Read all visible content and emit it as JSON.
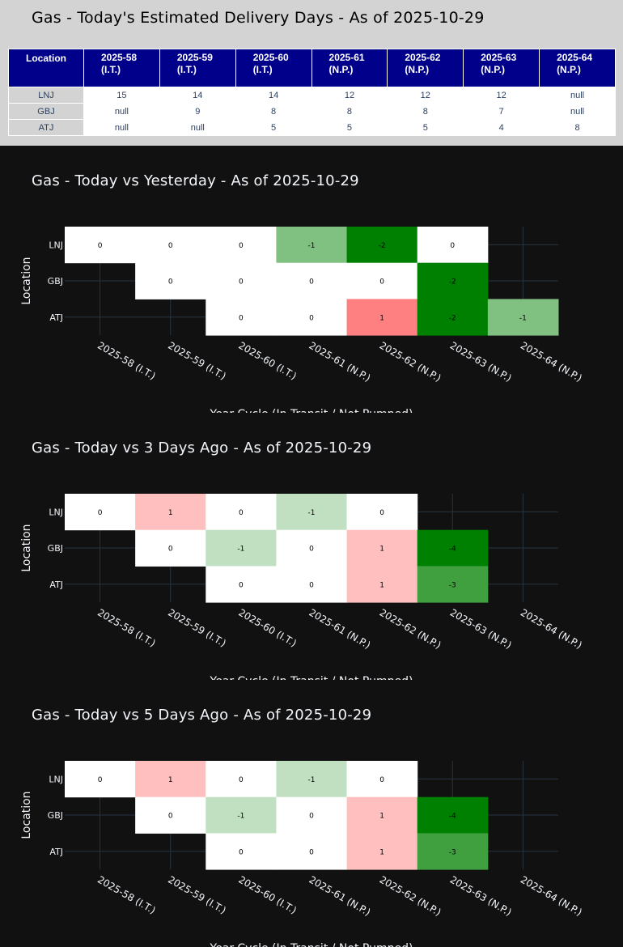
{
  "summary": {
    "title": "Gas - Today's Estimated Delivery Days - As of 2025-10-29",
    "header_location": "Location",
    "columns": [
      {
        "line1": "2025-58",
        "line2": "(I.T.)"
      },
      {
        "line1": "2025-59",
        "line2": "(I.T.)"
      },
      {
        "line1": "2025-60",
        "line2": "(I.T.)"
      },
      {
        "line1": "2025-61",
        "line2": "(N.P.)"
      },
      {
        "line1": "2025-62",
        "line2": "(N.P.)"
      },
      {
        "line1": "2025-63",
        "line2": "(N.P.)"
      },
      {
        "line1": "2025-64",
        "line2": "(N.P.)"
      }
    ],
    "rows": [
      {
        "location": "LNJ",
        "values": [
          "15",
          "14",
          "14",
          "12",
          "12",
          "12",
          "null"
        ]
      },
      {
        "location": "GBJ",
        "values": [
          "null",
          "9",
          "8",
          "8",
          "8",
          "7",
          "null"
        ]
      },
      {
        "location": "ATJ",
        "values": [
          "null",
          "null",
          "5",
          "5",
          "5",
          "4",
          "8"
        ]
      }
    ]
  },
  "chart_data": [
    {
      "type": "heatmap",
      "title": "Gas - Today vs Yesterday - As of 2025-10-29",
      "xlabel": "Year-Cycle (In Transit / Not Pumped)",
      "ylabel": "Location",
      "x": [
        "2025-58 (I.T.)",
        "2025-59 (I.T.)",
        "2025-60 (I.T.)",
        "2025-61 (N.P.)",
        "2025-62 (N.P.)",
        "2025-63 (N.P.)",
        "2025-64 (N.P.)"
      ],
      "y": [
        "LNJ",
        "GBJ",
        "ATJ"
      ],
      "z": [
        [
          0,
          0,
          0,
          -1,
          -2,
          0,
          null
        ],
        [
          null,
          0,
          0,
          0,
          0,
          -2,
          null
        ],
        [
          null,
          null,
          0,
          0,
          1,
          -2,
          -1
        ]
      ],
      "grid": true
    },
    {
      "type": "heatmap",
      "title": "Gas - Today vs 3 Days Ago - As of 2025-10-29",
      "xlabel": "Year-Cycle (In Transit / Not Pumped)",
      "ylabel": "Location",
      "x": [
        "2025-58 (I.T.)",
        "2025-59 (I.T.)",
        "2025-60 (I.T.)",
        "2025-61 (N.P.)",
        "2025-62 (N.P.)",
        "2025-63 (N.P.)",
        "2025-64 (N.P.)"
      ],
      "y": [
        "LNJ",
        "GBJ",
        "ATJ"
      ],
      "z": [
        [
          0,
          1,
          0,
          -1,
          0,
          null,
          null
        ],
        [
          null,
          0,
          -1,
          0,
          1,
          -4,
          null
        ],
        [
          null,
          null,
          0,
          0,
          1,
          -3,
          null
        ]
      ],
      "grid": true
    },
    {
      "type": "heatmap",
      "title": "Gas - Today vs 5 Days Ago - As of 2025-10-29",
      "xlabel": "Year-Cycle (In Transit / Not Pumped)",
      "ylabel": "Location",
      "x": [
        "2025-58 (I.T.)",
        "2025-59 (I.T.)",
        "2025-60 (I.T.)",
        "2025-61 (N.P.)",
        "2025-62 (N.P.)",
        "2025-63 (N.P.)",
        "2025-64 (N.P.)"
      ],
      "y": [
        "LNJ",
        "GBJ",
        "ATJ"
      ],
      "z": [
        [
          0,
          1,
          0,
          -1,
          0,
          null,
          null
        ],
        [
          null,
          0,
          -1,
          0,
          1,
          -4,
          null
        ],
        [
          null,
          null,
          0,
          0,
          1,
          -3,
          null
        ]
      ],
      "grid": true
    }
  ],
  "colors": {
    "zero": "#ffffff",
    "green_1_light": "#c1e0c1",
    "green_1_medium": "#80c080",
    "green_2": "#008000",
    "green_3": "#40a040",
    "green_4": "#008000",
    "red_1_light": "#ffbfbf",
    "red_1_medium": "#ff8080",
    "header_bg": "#00008b",
    "panel_bg": "#d3d3d3",
    "chart_bg": "#111111"
  }
}
